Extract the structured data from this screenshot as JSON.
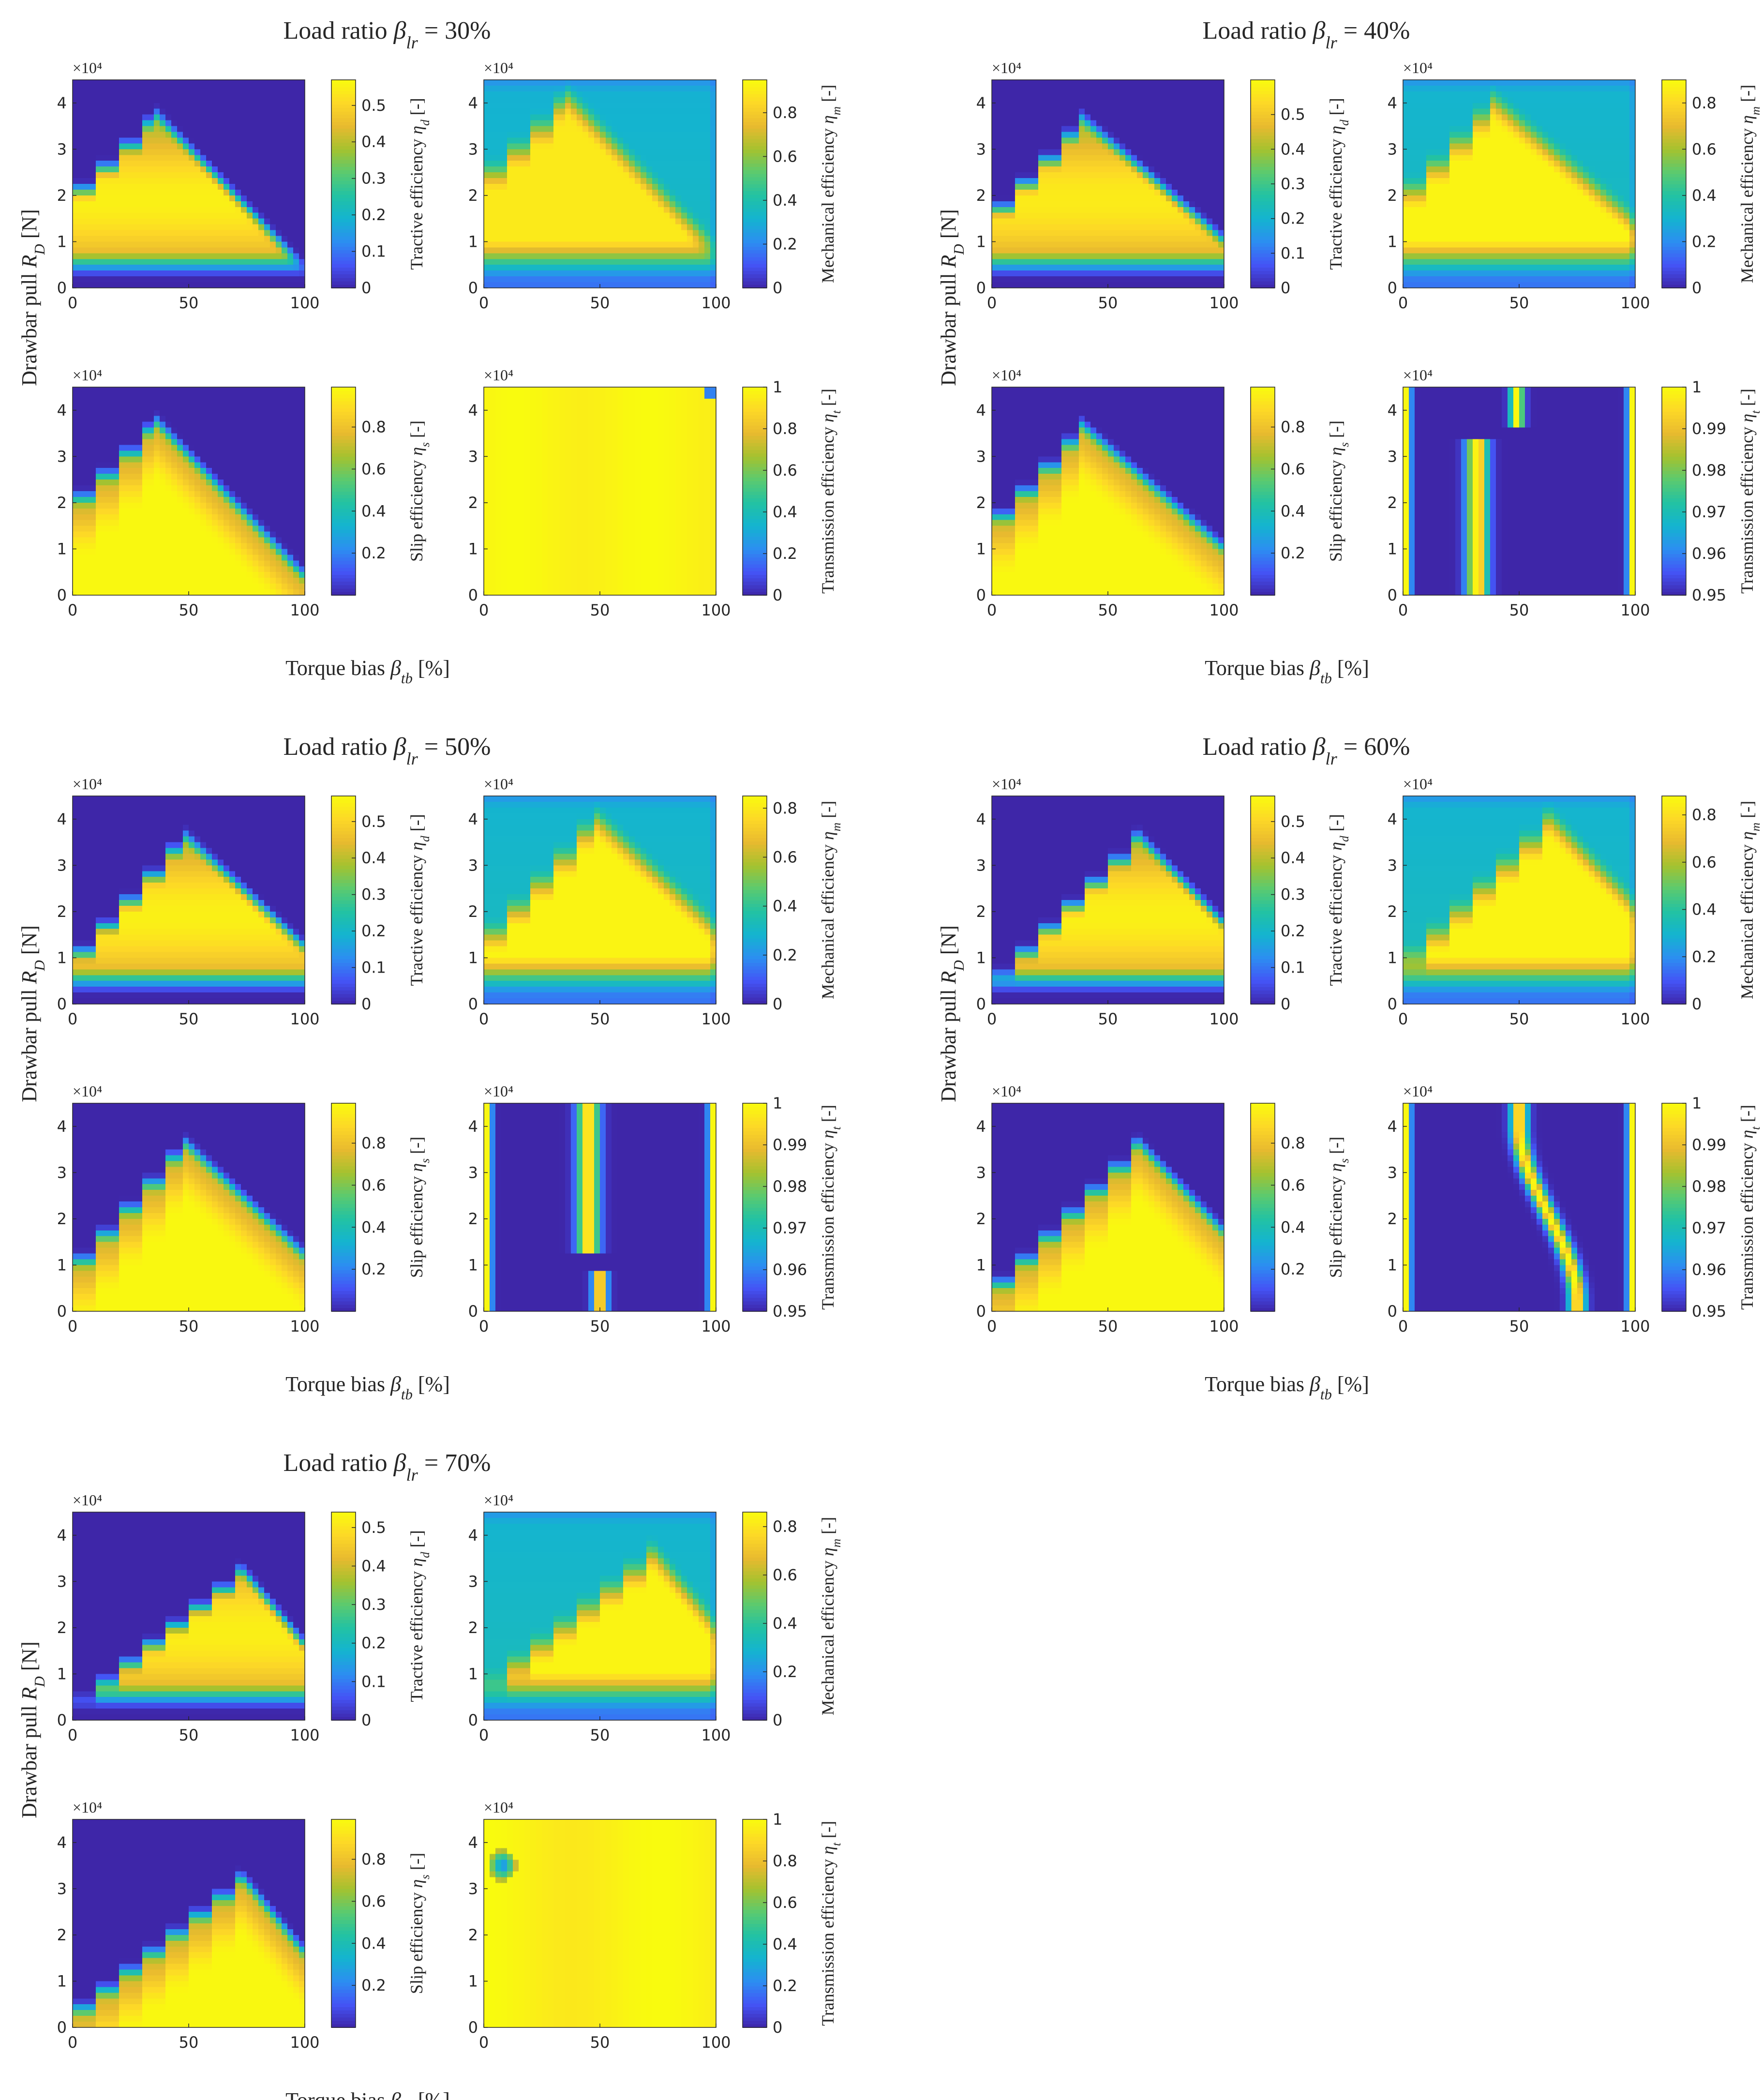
{
  "figure": {
    "ylabel": "Drawbar pull R_D [N]",
    "xlabel": "Torque bias β_tb [%]",
    "multiplier": "×10⁴",
    "colormap": [
      "#3e26a8",
      "#4454f6",
      "#2c8ef1",
      "#14b4d0",
      "#22c2a3",
      "#5bca6f",
      "#a5c22f",
      "#e8ba2f",
      "#fdd827",
      "#f9fb0e"
    ]
  },
  "chart_data": [
    {
      "type": "heatmap",
      "title": "Load ratio β_lr = 30%",
      "panels": [
        {
          "quantity": "tractive",
          "colorbar_label": "Tractive efficiency η_d [-]",
          "clim": [
            0,
            0.57
          ],
          "cticks": [
            0,
            0.1,
            0.2,
            0.3,
            0.4,
            0.5
          ],
          "xlim": [
            0,
            100
          ],
          "ylim_x1e4": [
            0,
            4.5
          ],
          "region": {
            "steps": [
              [
                0,
                2.1
              ],
              [
                10,
                2.7
              ],
              [
                20,
                3.2
              ],
              [
                30,
                3.9
              ]
            ],
            "peak_x": 35,
            "right_edge_x": 85,
            "tail_to_x": 95,
            "floor_y": 0.6
          },
          "peak": 0.55
        },
        {
          "quantity": "mechanical",
          "colorbar_label": "Mechanical efficiency η_m [-]",
          "clim": [
            0,
            0.95
          ],
          "cticks": [
            0,
            0.2,
            0.4,
            0.6,
            0.8
          ],
          "xlim": [
            0,
            100
          ],
          "ylim_x1e4": [
            0,
            4.5
          ],
          "peak": 0.9
        },
        {
          "quantity": "slip",
          "colorbar_label": "Slip efficiency η_s [-]",
          "clim": [
            0,
            0.99
          ],
          "cticks": [
            0.2,
            0.4,
            0.6,
            0.8
          ],
          "xlim": [
            0,
            100
          ],
          "ylim_x1e4": [
            0,
            4.5
          ],
          "peak": 0.98
        },
        {
          "quantity": "transmission",
          "colorbar_label": "Transmission efficiency η_t [-]",
          "clim": [
            0,
            1
          ],
          "cticks": [
            0,
            0.2,
            0.4,
            0.6,
            0.8,
            1
          ],
          "xlim": [
            0,
            100
          ],
          "ylim_x1e4": [
            0,
            4.5
          ],
          "peak": 1
        }
      ]
    },
    {
      "type": "heatmap",
      "title": "Load ratio β_lr = 40%",
      "panels": [
        {
          "quantity": "tractive",
          "colorbar_label": "Tractive efficiency η_d [-]",
          "clim": [
            0,
            0.6
          ],
          "cticks": [
            0,
            0.1,
            0.2,
            0.3,
            0.4,
            0.5
          ],
          "xlim": [
            0,
            100
          ],
          "ylim_x1e4": [
            0,
            4.5
          ],
          "peak": 0.57
        },
        {
          "quantity": "mechanical",
          "colorbar_label": "Mechanical efficiency η_m [-]",
          "clim": [
            0,
            0.9
          ],
          "cticks": [
            0,
            0.2,
            0.4,
            0.6,
            0.8
          ],
          "xlim": [
            0,
            100
          ],
          "ylim_x1e4": [
            0,
            4.5
          ],
          "peak": 0.88
        },
        {
          "quantity": "slip",
          "colorbar_label": "Slip efficiency η_s [-]",
          "clim": [
            0,
            0.99
          ],
          "cticks": [
            0.2,
            0.4,
            0.6,
            0.8
          ],
          "xlim": [
            0,
            100
          ],
          "ylim_x1e4": [
            0,
            4.5
          ],
          "peak": 0.98
        },
        {
          "quantity": "transmission",
          "colorbar_label": "Transmission efficiency η_t [-]",
          "clim": [
            0.95,
            1
          ],
          "cticks": [
            0.95,
            0.96,
            0.97,
            0.98,
            0.99,
            1
          ],
          "xlim": [
            0,
            100
          ],
          "ylim_x1e4": [
            0,
            4.5
          ],
          "peak": 1
        }
      ]
    },
    {
      "type": "heatmap",
      "title": "Load ratio β_lr = 50%",
      "panels": [
        {
          "quantity": "tractive",
          "colorbar_label": "Tractive efficiency η_d [-]",
          "clim": [
            0,
            0.57
          ],
          "cticks": [
            0,
            0.1,
            0.2,
            0.3,
            0.4,
            0.5
          ],
          "xlim": [
            0,
            100
          ],
          "ylim_x1e4": [
            0,
            4.5
          ],
          "peak": 0.55
        },
        {
          "quantity": "mechanical",
          "colorbar_label": "Mechanical efficiency η_m [-]",
          "clim": [
            0,
            0.85
          ],
          "cticks": [
            0,
            0.2,
            0.4,
            0.6,
            0.8
          ],
          "xlim": [
            0,
            100
          ],
          "ylim_x1e4": [
            0,
            4.5
          ],
          "peak": 0.83
        },
        {
          "quantity": "slip",
          "colorbar_label": "Slip efficiency η_s [-]",
          "clim": [
            0,
            0.99
          ],
          "cticks": [
            0.2,
            0.4,
            0.6,
            0.8
          ],
          "xlim": [
            0,
            100
          ],
          "ylim_x1e4": [
            0,
            4.5
          ],
          "peak": 0.98
        },
        {
          "quantity": "transmission",
          "colorbar_label": "Transmission efficiency η_t [-]",
          "clim": [
            0.95,
            1
          ],
          "cticks": [
            0.95,
            0.96,
            0.97,
            0.98,
            0.99,
            1
          ],
          "xlim": [
            0,
            100
          ],
          "ylim_x1e4": [
            0,
            4.5
          ],
          "peak": 1
        }
      ]
    },
    {
      "type": "heatmap",
      "title": "Load ratio β_lr = 60%",
      "panels": [
        {
          "quantity": "tractive",
          "colorbar_label": "Tractive efficiency η_d [-]",
          "clim": [
            0,
            0.57
          ],
          "cticks": [
            0,
            0.1,
            0.2,
            0.3,
            0.4,
            0.5
          ],
          "xlim": [
            0,
            100
          ],
          "ylim_x1e4": [
            0,
            4.5
          ],
          "peak": 0.55
        },
        {
          "quantity": "mechanical",
          "colorbar_label": "Mechanical efficiency η_m [-]",
          "clim": [
            0,
            0.88
          ],
          "cticks": [
            0,
            0.2,
            0.4,
            0.6,
            0.8
          ],
          "xlim": [
            0,
            100
          ],
          "ylim_x1e4": [
            0,
            4.5
          ],
          "peak": 0.86
        },
        {
          "quantity": "slip",
          "colorbar_label": "Slip efficiency η_s [-]",
          "clim": [
            0,
            0.99
          ],
          "cticks": [
            0.2,
            0.4,
            0.6,
            0.8
          ],
          "xlim": [
            0,
            100
          ],
          "ylim_x1e4": [
            0,
            4.5
          ],
          "peak": 0.98
        },
        {
          "quantity": "transmission",
          "colorbar_label": "Transmission efficiency η_t [-]",
          "clim": [
            0.95,
            1
          ],
          "cticks": [
            0.95,
            0.96,
            0.97,
            0.98,
            0.99,
            1
          ],
          "xlim": [
            0,
            100
          ],
          "ylim_x1e4": [
            0,
            4.5
          ],
          "peak": 1
        }
      ]
    },
    {
      "type": "heatmap",
      "title": "Load ratio β_lr = 70%",
      "panels": [
        {
          "quantity": "tractive",
          "colorbar_label": "Tractive efficiency η_d [-]",
          "clim": [
            0,
            0.54
          ],
          "cticks": [
            0,
            0.1,
            0.2,
            0.3,
            0.4,
            0.5
          ],
          "xlim": [
            0,
            100
          ],
          "ylim_x1e4": [
            0,
            4.5
          ],
          "peak": 0.52
        },
        {
          "quantity": "mechanical",
          "colorbar_label": "Mechanical efficiency η_m [-]",
          "clim": [
            0,
            0.86
          ],
          "cticks": [
            0,
            0.2,
            0.4,
            0.6,
            0.8
          ],
          "xlim": [
            0,
            100
          ],
          "ylim_x1e4": [
            0,
            4.5
          ],
          "peak": 0.84
        },
        {
          "quantity": "slip",
          "colorbar_label": "Slip efficiency η_s [-]",
          "clim": [
            0,
            0.99
          ],
          "cticks": [
            0.2,
            0.4,
            0.6,
            0.8
          ],
          "xlim": [
            0,
            100
          ],
          "ylim_x1e4": [
            0,
            4.5
          ],
          "peak": 0.98
        },
        {
          "quantity": "transmission",
          "colorbar_label": "Transmission efficiency η_t [-]",
          "clim": [
            0,
            1
          ],
          "cticks": [
            0,
            0.2,
            0.4,
            0.6,
            0.8,
            1
          ],
          "xlim": [
            0,
            100
          ],
          "ylim_x1e4": [
            0,
            4.5
          ],
          "peak": 1
        }
      ]
    }
  ]
}
